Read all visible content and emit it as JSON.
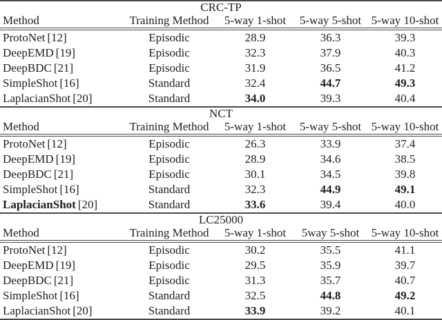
{
  "page": {
    "background_color": "#ffffff",
    "text_color": "#1e1e1e",
    "rule_color": "#474747"
  },
  "tables": [
    {
      "title": "CRC-TP",
      "columns": [
        "Method",
        "Training Method",
        "5-way 1-shot",
        "5-way 5-shot",
        "5-way 10-shot"
      ],
      "rows": [
        {
          "method": "ProtoNet",
          "ref": "[12]",
          "method_bold": false,
          "training": "Episodic",
          "scores": [
            {
              "value": "28.9",
              "bold": false
            },
            {
              "value": "36.3",
              "bold": false
            },
            {
              "value": "39.3",
              "bold": false
            }
          ]
        },
        {
          "method": "DeepEMD",
          "ref": "[19]",
          "method_bold": false,
          "training": "Episodic",
          "scores": [
            {
              "value": "32.3",
              "bold": false
            },
            {
              "value": "37.9",
              "bold": false
            },
            {
              "value": "40.3",
              "bold": false
            }
          ]
        },
        {
          "method": "DeepBDC",
          "ref": "[21]",
          "method_bold": false,
          "training": "Episodic",
          "scores": [
            {
              "value": "31.9",
              "bold": false
            },
            {
              "value": "36.5",
              "bold": false
            },
            {
              "value": "41.2",
              "bold": false
            }
          ]
        },
        {
          "method": "SimpleShot",
          "ref": "[16]",
          "method_bold": false,
          "training": "Standard",
          "scores": [
            {
              "value": "32.4",
              "bold": false
            },
            {
              "value": "44.7",
              "bold": true
            },
            {
              "value": "49.3",
              "bold": true
            }
          ]
        },
        {
          "method": "LaplacianShot",
          "ref": "[20]",
          "method_bold": false,
          "training": "Standard",
          "scores": [
            {
              "value": "34.0",
              "bold": true
            },
            {
              "value": "39.3",
              "bold": false
            },
            {
              "value": "40.4",
              "bold": false
            }
          ]
        }
      ]
    },
    {
      "title": "NCT",
      "columns": [
        "Method",
        "Training Method",
        "5-way 1-shot",
        "5-way 5-shot",
        "5-way 10-shot"
      ],
      "rows": [
        {
          "method": "ProtoNet",
          "ref": "[12]",
          "method_bold": false,
          "training": "Episodic",
          "scores": [
            {
              "value": "26.3",
              "bold": false
            },
            {
              "value": "33.9",
              "bold": false
            },
            {
              "value": "37.4",
              "bold": false
            }
          ]
        },
        {
          "method": "DeepEMD",
          "ref": "[19]",
          "method_bold": false,
          "training": "Episodic",
          "scores": [
            {
              "value": "28.9",
              "bold": false
            },
            {
              "value": "34.6",
              "bold": false
            },
            {
              "value": "38.5",
              "bold": false
            }
          ]
        },
        {
          "method": "DeepBDC",
          "ref": "[21]",
          "method_bold": false,
          "training": "Episodic",
          "scores": [
            {
              "value": "30.1",
              "bold": false
            },
            {
              "value": "34.5",
              "bold": false
            },
            {
              "value": "39.8",
              "bold": false
            }
          ]
        },
        {
          "method": "SimpleShot",
          "ref": "[16]",
          "method_bold": false,
          "training": "Standard",
          "scores": [
            {
              "value": "32.3",
              "bold": false
            },
            {
              "value": "44.9",
              "bold": true
            },
            {
              "value": "49.1",
              "bold": true
            }
          ]
        },
        {
          "method": "LaplacianShot",
          "ref": "[20]",
          "method_bold": true,
          "training": "Standard",
          "scores": [
            {
              "value": "33.6",
              "bold": true
            },
            {
              "value": "39.4",
              "bold": false
            },
            {
              "value": "40.0",
              "bold": false
            }
          ]
        }
      ]
    },
    {
      "title": "LC25000",
      "columns": [
        "Method",
        "Training Method",
        "5-way 1-shot",
        "5way 5-shot",
        "5-way 10-shot"
      ],
      "rows": [
        {
          "method": "ProtoNet",
          "ref": "[12]",
          "method_bold": false,
          "training": "Episodic",
          "scores": [
            {
              "value": "30.2",
              "bold": false
            },
            {
              "value": "35.5",
              "bold": false
            },
            {
              "value": "41.1",
              "bold": false
            }
          ]
        },
        {
          "method": "DeepEMD",
          "ref": "[19]",
          "method_bold": false,
          "training": "Episodic",
          "scores": [
            {
              "value": "29.5",
              "bold": false
            },
            {
              "value": "35.9",
              "bold": false
            },
            {
              "value": "39.7",
              "bold": false
            }
          ]
        },
        {
          "method": "DeepBDC",
          "ref": "[21]",
          "method_bold": false,
          "training": "Episodic",
          "scores": [
            {
              "value": "31.3",
              "bold": false
            },
            {
              "value": "35.7",
              "bold": false
            },
            {
              "value": "40.7",
              "bold": false
            }
          ]
        },
        {
          "method": "SimpleShot",
          "ref": "[16]",
          "method_bold": false,
          "training": "Standard",
          "scores": [
            {
              "value": "32.5",
              "bold": false
            },
            {
              "value": "44.8",
              "bold": true
            },
            {
              "value": "49.2",
              "bold": true
            }
          ]
        },
        {
          "method": "LaplacianShot",
          "ref": "[20]",
          "method_bold": false,
          "training": "Standard",
          "scores": [
            {
              "value": "33.9",
              "bold": true
            },
            {
              "value": "39.2",
              "bold": false
            },
            {
              "value": "40.1",
              "bold": false
            }
          ]
        }
      ]
    }
  ]
}
